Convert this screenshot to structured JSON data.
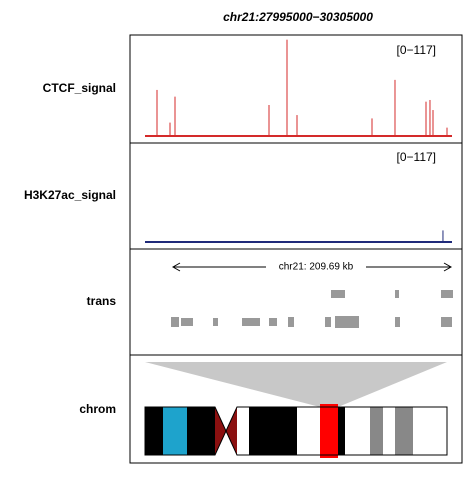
{
  "title": "chr21:27995000−30305000",
  "xlim": [
    27995000,
    30305000
  ],
  "tracks": [
    {
      "label": "CTCF_signal",
      "range_label": "[0−117]",
      "ylim": [
        0,
        117
      ],
      "color": "#d42a2a",
      "peaks": {
        "x": [
          28085300,
          28183100,
          28220700,
          28928000,
          29063400,
          29138700,
          29703000,
          29876000,
          30109300,
          30139300,
          30162000,
          30267400
        ],
        "y": [
          55,
          16,
          47,
          37,
          115,
          25,
          21,
          67,
          41,
          43,
          31,
          10
        ]
      }
    },
    {
      "label": "H3K27ac_signal",
      "range_label": "[0−117]",
      "ylim": [
        0,
        117
      ],
      "color": "#1f2a7a",
      "peaks": {
        "x": [
          30237000
        ],
        "y": [
          14
        ]
      }
    }
  ],
  "trans_label": "trans",
  "ruler_label": "chr21: 209.69 kb",
  "chrom_label": "chrom"
}
